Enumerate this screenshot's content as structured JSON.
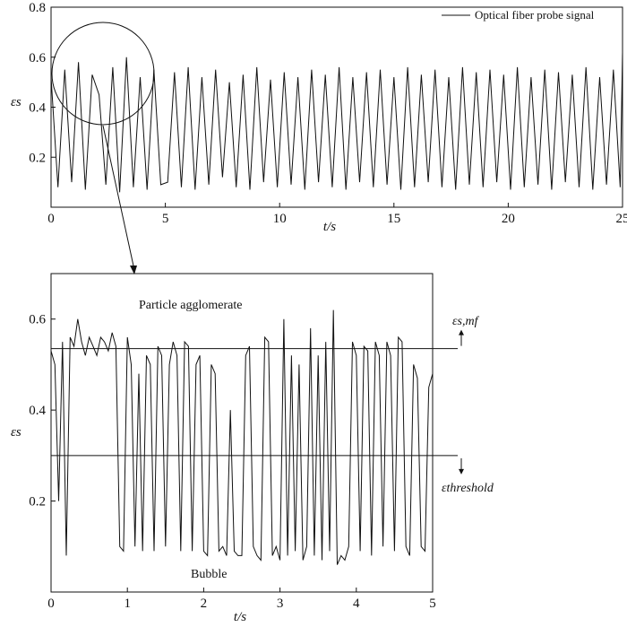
{
  "chart_data": [
    {
      "type": "line",
      "title": "",
      "xlabel": "t/s",
      "ylabel": "εs",
      "xlim": [
        0,
        25
      ],
      "ylim": [
        0,
        0.8
      ],
      "x_ticks": [
        0,
        5,
        10,
        15,
        20,
        25
      ],
      "y_ticks": [
        0.2,
        0.4,
        0.6,
        0.8
      ],
      "legend": {
        "placement": "top-right",
        "entries": [
          "Optical fiber probe signal"
        ]
      },
      "grid": false,
      "series": [
        {
          "name": "Optical fiber probe signal",
          "color": "#111111",
          "x": [
            0.0,
            0.3,
            0.6,
            0.9,
            1.2,
            1.5,
            1.8,
            2.1,
            2.4,
            2.7,
            3.0,
            3.3,
            3.6,
            3.9,
            4.2,
            4.5,
            4.8,
            5.1,
            5.4,
            5.7,
            6.0,
            6.3,
            6.6,
            6.9,
            7.2,
            7.5,
            7.8,
            8.1,
            8.4,
            8.7,
            9.0,
            9.3,
            9.6,
            9.9,
            10.2,
            10.5,
            10.8,
            11.1,
            11.4,
            11.7,
            12.0,
            12.3,
            12.6,
            12.9,
            13.2,
            13.5,
            13.8,
            14.1,
            14.4,
            14.7,
            15.0,
            15.3,
            15.6,
            15.9,
            16.2,
            16.5,
            16.8,
            17.1,
            17.4,
            17.7,
            18.0,
            18.3,
            18.6,
            18.9,
            19.2,
            19.5,
            19.8,
            20.1,
            20.4,
            20.7,
            21.0,
            21.3,
            21.6,
            21.9,
            22.2,
            22.5,
            22.8,
            23.1,
            23.4,
            23.7,
            24.0,
            24.3,
            24.6,
            24.9,
            25.0
          ],
          "y": [
            0.52,
            0.08,
            0.55,
            0.1,
            0.58,
            0.07,
            0.53,
            0.45,
            0.09,
            0.56,
            0.06,
            0.6,
            0.08,
            0.52,
            0.07,
            0.55,
            0.09,
            0.1,
            0.54,
            0.08,
            0.56,
            0.07,
            0.52,
            0.09,
            0.55,
            0.12,
            0.5,
            0.08,
            0.53,
            0.07,
            0.56,
            0.1,
            0.51,
            0.08,
            0.54,
            0.09,
            0.52,
            0.07,
            0.55,
            0.1,
            0.53,
            0.08,
            0.56,
            0.07,
            0.52,
            0.1,
            0.54,
            0.08,
            0.55,
            0.09,
            0.52,
            0.07,
            0.56,
            0.08,
            0.53,
            0.1,
            0.55,
            0.08,
            0.52,
            0.07,
            0.56,
            0.09,
            0.54,
            0.08,
            0.55,
            0.1,
            0.53,
            0.07,
            0.56,
            0.08,
            0.52,
            0.09,
            0.55,
            0.07,
            0.54,
            0.1,
            0.53,
            0.08,
            0.56,
            0.07,
            0.52,
            0.09,
            0.55,
            0.08,
            0.62
          ]
        }
      ]
    },
    {
      "type": "line",
      "title": "",
      "xlabel": "t/s",
      "ylabel": "εs",
      "xlim": [
        0,
        5
      ],
      "ylim": [
        0,
        0.7
      ],
      "x_ticks": [
        0,
        1,
        2,
        3,
        4,
        5
      ],
      "y_ticks": [
        0.2,
        0.4,
        0.6
      ],
      "grid": false,
      "reference_lines": [
        {
          "y": 0.535,
          "label": "εs,mf",
          "direction": "up"
        },
        {
          "y": 0.3,
          "label": "εthreshold",
          "direction": "down"
        }
      ],
      "annotations": [
        {
          "text": "Particle agglomerate",
          "x": 2.0,
          "y": 0.635
        },
        {
          "text": "Bubble",
          "x": 2.0,
          "y": 0.035
        }
      ],
      "series": [
        {
          "color": "#111111",
          "x": [
            0.0,
            0.05,
            0.1,
            0.15,
            0.2,
            0.25,
            0.3,
            0.35,
            0.4,
            0.45,
            0.5,
            0.55,
            0.6,
            0.65,
            0.7,
            0.75,
            0.8,
            0.85,
            0.9,
            0.95,
            1.0,
            1.05,
            1.1,
            1.15,
            1.2,
            1.25,
            1.3,
            1.35,
            1.4,
            1.45,
            1.5,
            1.55,
            1.6,
            1.65,
            1.7,
            1.75,
            1.8,
            1.85,
            1.9,
            1.95,
            2.0,
            2.05,
            2.1,
            2.15,
            2.2,
            2.25,
            2.3,
            2.35,
            2.4,
            2.45,
            2.5,
            2.55,
            2.6,
            2.65,
            2.7,
            2.75,
            2.8,
            2.85,
            2.9,
            2.95,
            3.0,
            3.05,
            3.1,
            3.15,
            3.2,
            3.25,
            3.3,
            3.35,
            3.4,
            3.45,
            3.5,
            3.55,
            3.6,
            3.65,
            3.7,
            3.75,
            3.8,
            3.85,
            3.9,
            3.95,
            4.0,
            4.05,
            4.1,
            4.15,
            4.2,
            4.25,
            4.3,
            4.35,
            4.4,
            4.45,
            4.5,
            4.55,
            4.6,
            4.65,
            4.7,
            4.75,
            4.8,
            4.85,
            4.9,
            4.95,
            5.0
          ],
          "y": [
            0.53,
            0.5,
            0.2,
            0.55,
            0.08,
            0.56,
            0.54,
            0.6,
            0.55,
            0.52,
            0.56,
            0.54,
            0.52,
            0.56,
            0.55,
            0.53,
            0.57,
            0.54,
            0.1,
            0.09,
            0.56,
            0.5,
            0.1,
            0.48,
            0.09,
            0.52,
            0.5,
            0.09,
            0.54,
            0.52,
            0.1,
            0.5,
            0.55,
            0.52,
            0.09,
            0.55,
            0.54,
            0.09,
            0.5,
            0.52,
            0.09,
            0.08,
            0.5,
            0.48,
            0.09,
            0.1,
            0.08,
            0.4,
            0.09,
            0.08,
            0.08,
            0.52,
            0.54,
            0.1,
            0.08,
            0.07,
            0.56,
            0.55,
            0.08,
            0.1,
            0.07,
            0.6,
            0.08,
            0.52,
            0.09,
            0.5,
            0.07,
            0.1,
            0.58,
            0.08,
            0.52,
            0.07,
            0.55,
            0.09,
            0.62,
            0.06,
            0.08,
            0.07,
            0.1,
            0.55,
            0.52,
            0.09,
            0.54,
            0.53,
            0.08,
            0.55,
            0.52,
            0.1,
            0.55,
            0.52,
            0.09,
            0.56,
            0.55,
            0.1,
            0.08,
            0.5,
            0.47,
            0.1,
            0.09,
            0.45,
            0.48
          ]
        }
      ]
    }
  ]
}
